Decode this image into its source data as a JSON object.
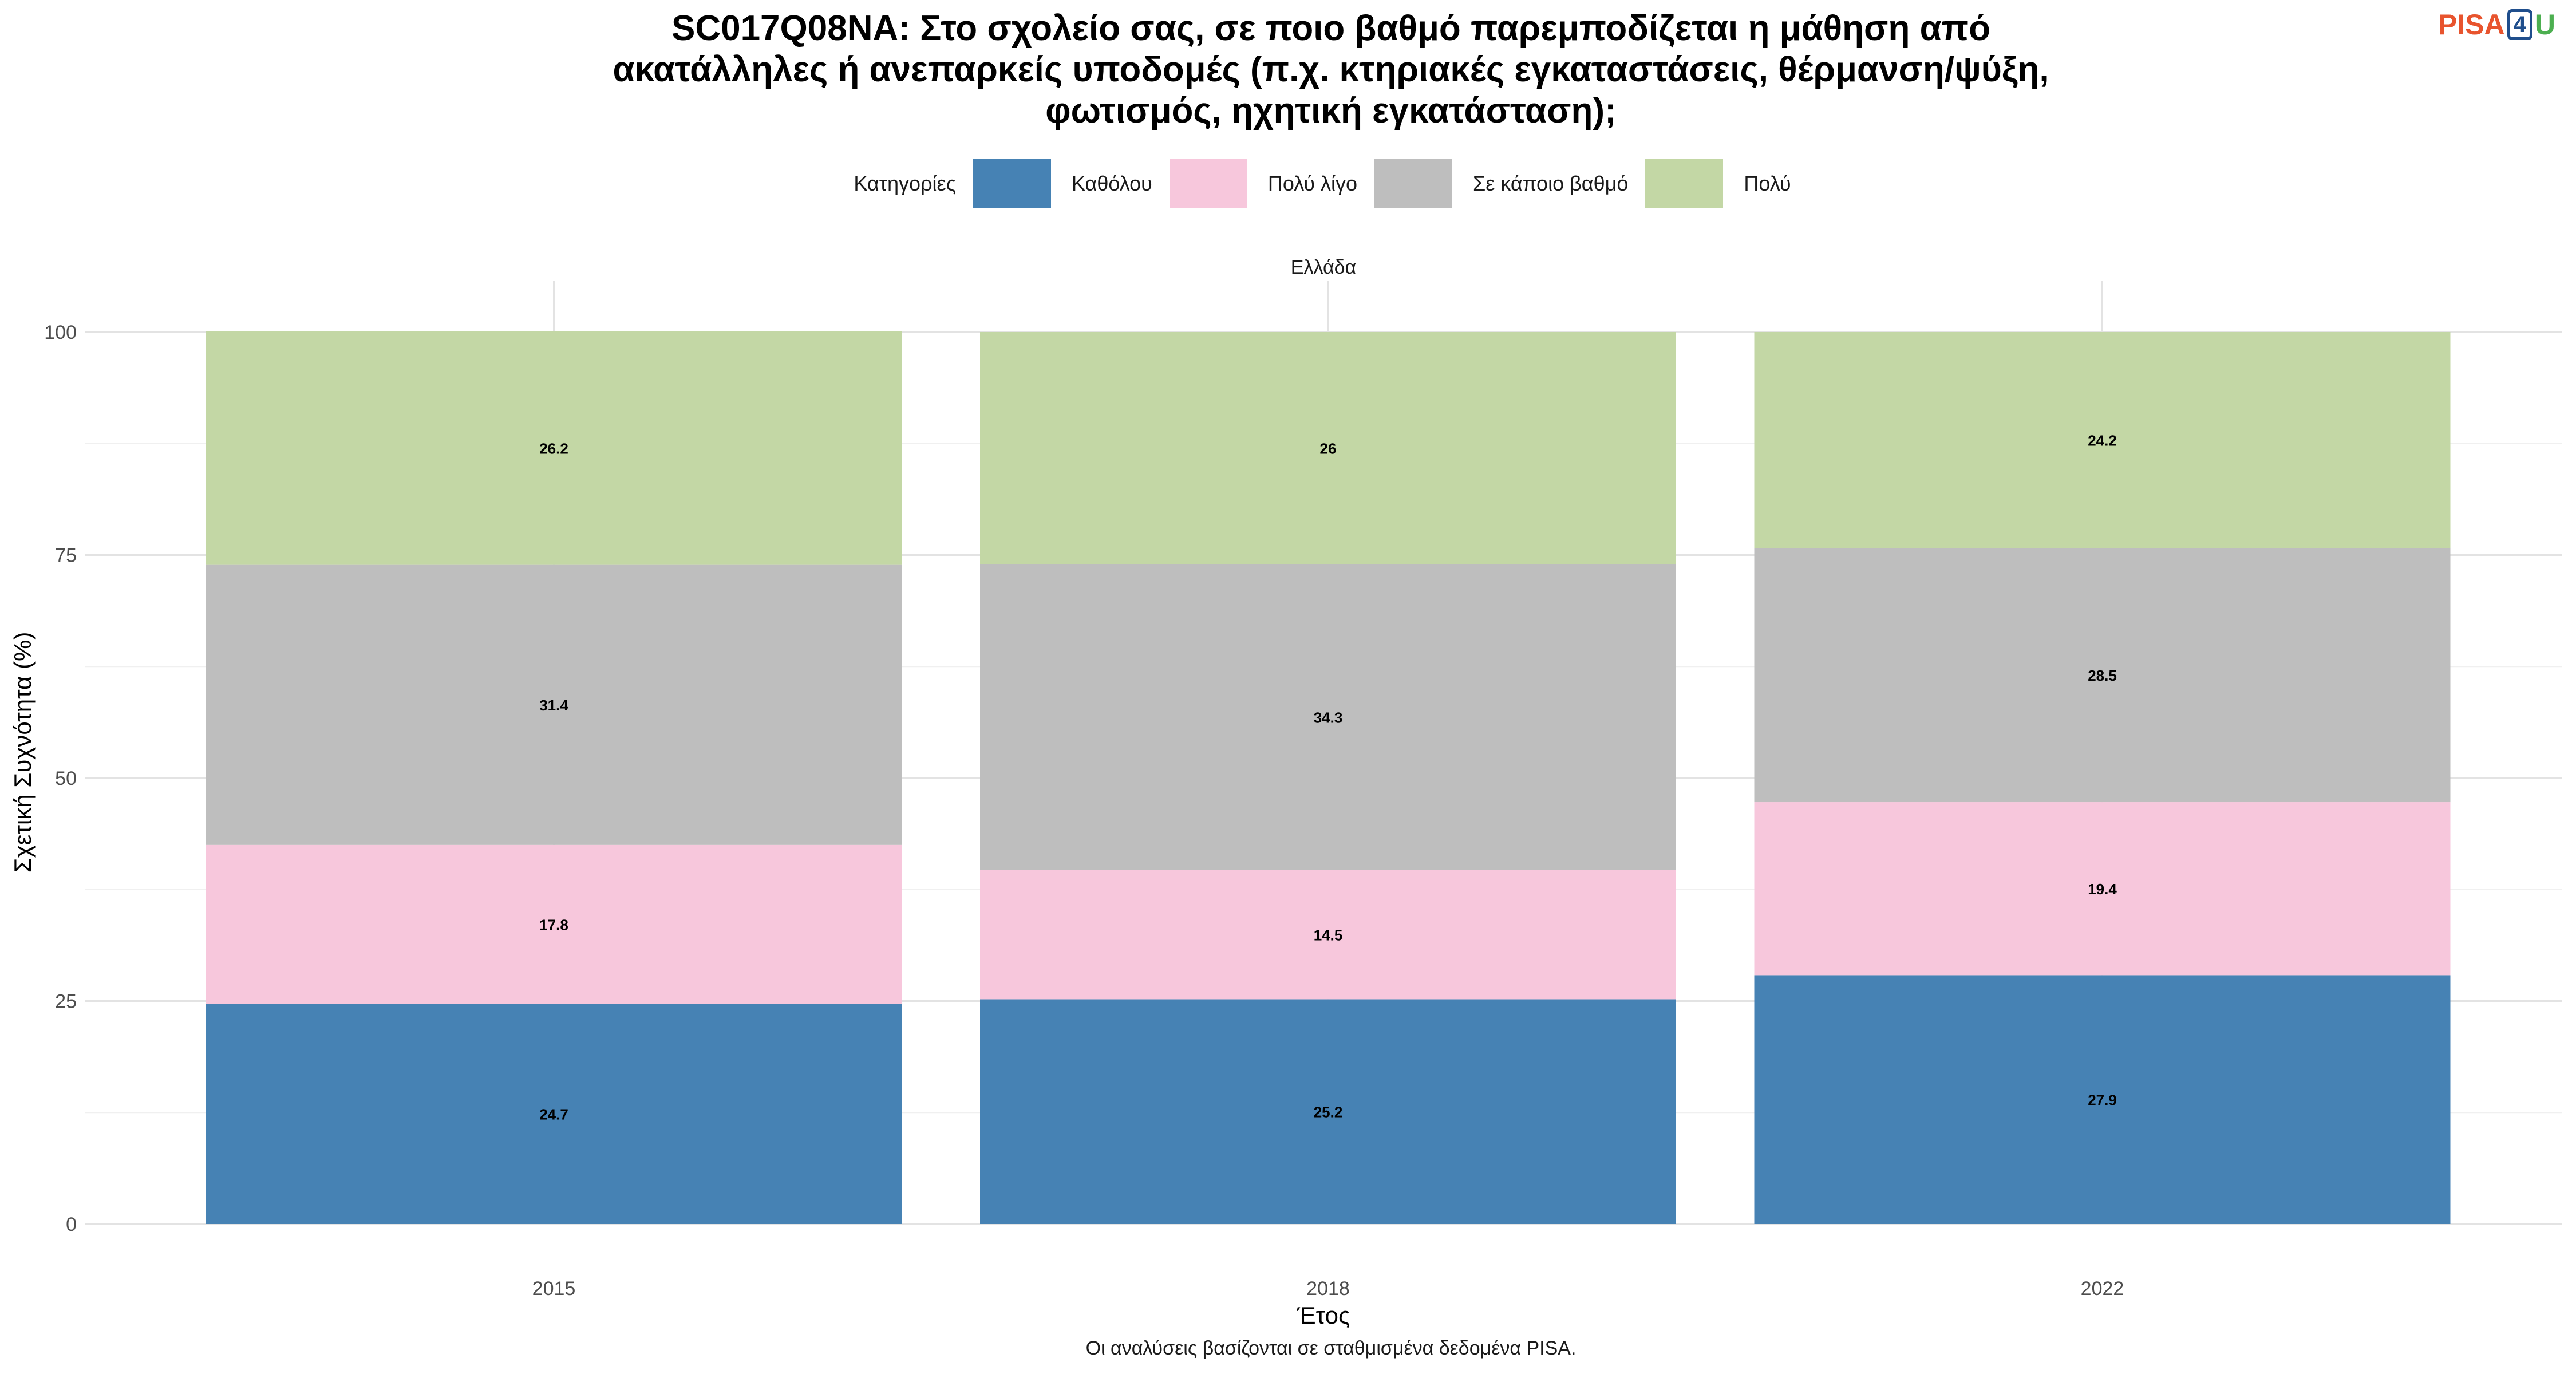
{
  "title_lines": [
    "SC017Q08NA: Στο σχολείο σας, σε ποιο βαθμό παρεμποδίζεται η μάθηση από",
    "ακατάλληλες ή ανεπαρκείς υποδομές (π.χ. κτηριακές εγκαταστάσεις, θέρμανση/ψύξη,",
    "φωτισμός, ηχητική εγκατάσταση);"
  ],
  "logo": {
    "pisa": "PISA",
    "four": "4",
    "u": "U"
  },
  "legend": {
    "title": "Κατηγορίες"
  },
  "facet_label": "Ελλάδα",
  "caption": "Οι αναλύσεις βασίζονται σε σταθμισμένα δεδομένα PISA.",
  "chart_data": {
    "type": "bar",
    "stacked": true,
    "categories": [
      "2015",
      "2018",
      "2022"
    ],
    "series": [
      {
        "name": "Καθόλου",
        "color": "#4682b4",
        "values": [
          24.7,
          25.2,
          27.9
        ]
      },
      {
        "name": "Πολύ λίγο",
        "color": "#f7c7dc",
        "values": [
          17.8,
          14.5,
          19.4
        ]
      },
      {
        "name": "Σε κάποιο βαθμό",
        "color": "#bebebe",
        "values": [
          31.4,
          34.3,
          28.5
        ]
      },
      {
        "name": "Πολύ",
        "color": "#c3d7a5",
        "values": [
          26.2,
          26,
          24.2
        ]
      }
    ],
    "data_labels": [
      [
        "24.7",
        "25.2",
        "27.9"
      ],
      [
        "17.8",
        "14.5",
        "19.4"
      ],
      [
        "31.4",
        "34.3",
        "28.5"
      ],
      [
        "26.2",
        "26",
        "24.2"
      ]
    ],
    "xlabel": "Έτος",
    "ylabel": "Σχετική Συχνότητα (%)",
    "ylim": [
      0,
      100
    ],
    "yticks": [
      "0",
      "25",
      "50",
      "75",
      "100"
    ],
    "grid": true,
    "legend_position": "top"
  }
}
